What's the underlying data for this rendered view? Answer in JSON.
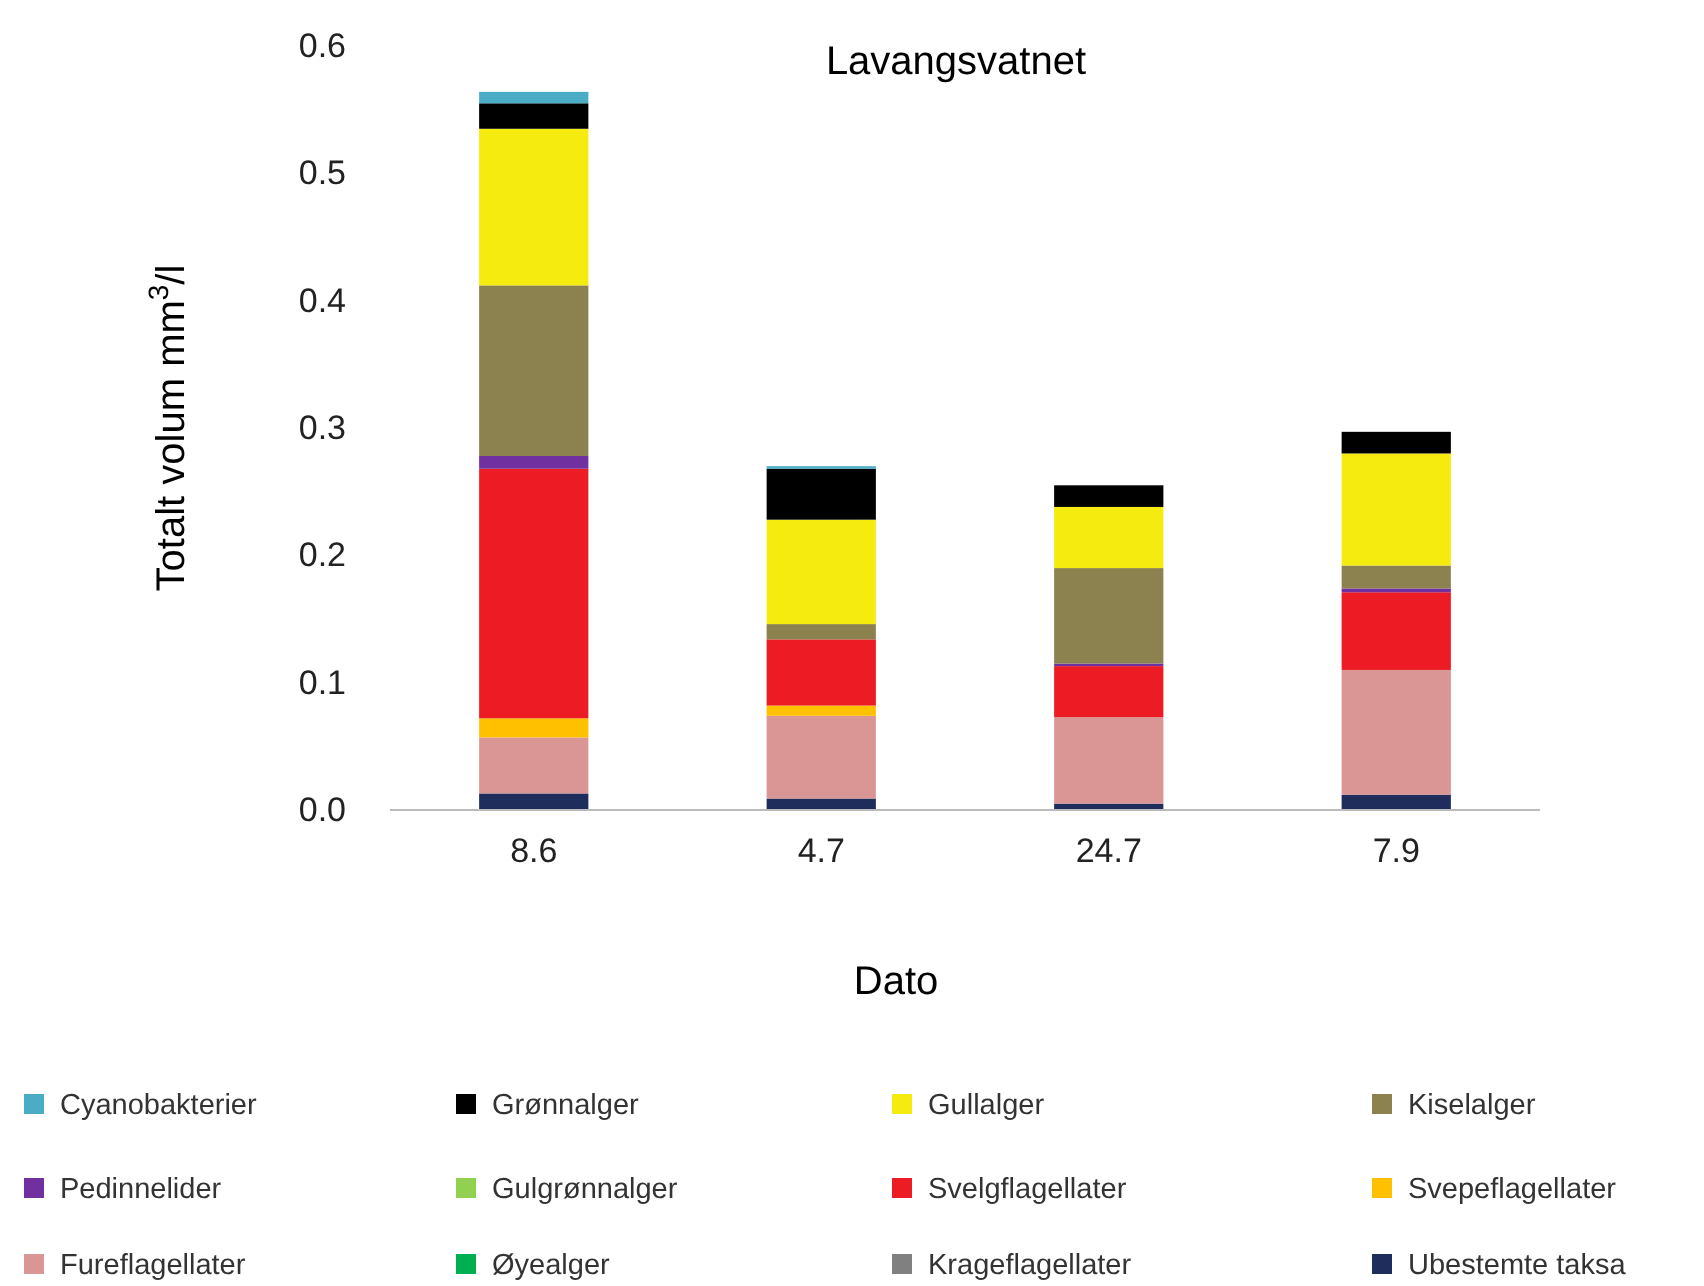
{
  "chart_data": {
    "type": "bar",
    "title": "Lavangsvatnet",
    "xlabel": "Dato",
    "ylabel": "Totalt volum mm$^{3}$/l",
    "categories": [
      "8.6",
      "4.7",
      "24.7",
      "7.9"
    ],
    "stacked": true,
    "ylim": [
      0,
      0.6
    ],
    "yticks": [
      {
        "value": 0,
        "label": "0.0"
      },
      0.1,
      0.2,
      0.3,
      0.4,
      0.5,
      0.6
    ],
    "grid": false,
    "legend": "bottom",
    "series": [
      {
        "name": "Ubestemte taksa",
        "color": "#1f2d5c",
        "values": [
          0.013,
          0.009,
          0.005,
          0.012
        ]
      },
      {
        "name": "Krageflagellater",
        "color": "#808080",
        "values": [
          0,
          0,
          0,
          0
        ]
      },
      {
        "name": "Øyealger",
        "color": "#00b050",
        "values": [
          0,
          0,
          0,
          0
        ]
      },
      {
        "name": "Fureflagellater",
        "color": "#d99694",
        "values": [
          0.044,
          0.065,
          0.068,
          0.098
        ]
      },
      {
        "name": "Svepeflagellater",
        "color": "#ffc000",
        "values": [
          0.015,
          0.008,
          0,
          0
        ]
      },
      {
        "name": "Svelgflagellater",
        "color": "#ed1c24",
        "values": [
          0.196,
          0.052,
          0.04,
          0.061
        ]
      },
      {
        "name": "Gulgrønnalger",
        "color": "#92d050",
        "values": [
          0,
          0,
          0,
          0
        ]
      },
      {
        "name": "Pedinnelider",
        "color": "#7030a0",
        "values": [
          0.01,
          0,
          0.002,
          0.003
        ]
      },
      {
        "name": "Kiselalger",
        "color": "#8c8250",
        "values": [
          0.134,
          0.012,
          0.075,
          0.018
        ]
      },
      {
        "name": "Gullalger",
        "color": "#f5eb0f",
        "values": [
          0.123,
          0.082,
          0.048,
          0.088
        ]
      },
      {
        "name": "Grønnalger",
        "color": "#000000",
        "values": [
          0.02,
          0.04,
          0.017,
          0.017
        ]
      },
      {
        "name": "Cyanobakterier",
        "color": "#4bacc6",
        "values": [
          0.009,
          0.002,
          0,
          0
        ]
      }
    ]
  }
}
